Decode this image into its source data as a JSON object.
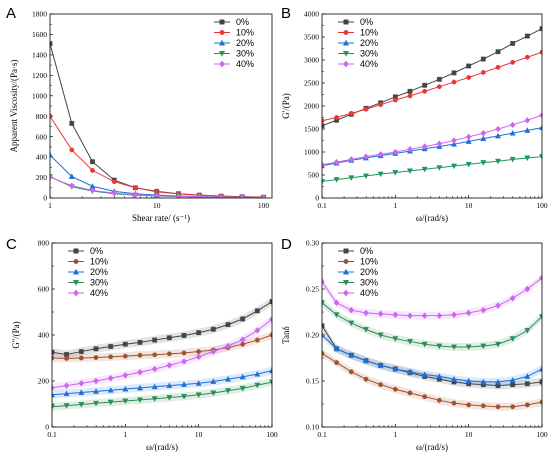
{
  "chart_data": [
    {
      "type": "line",
      "panel_label": "A",
      "xlabel": "Shear rate/ (s⁻¹)",
      "ylabel": "Apparent Viscosity/(Pa·s)",
      "xscale": "log",
      "xlim": [
        1,
        120
      ],
      "ylim": [
        0,
        1800
      ],
      "x_tick_labels": [
        "1",
        "10",
        "100"
      ],
      "y_tick_labels": [
        "0",
        "200",
        "400",
        "600",
        "800",
        "1000",
        "1200",
        "1400",
        "1600",
        "1800"
      ],
      "legend_position": "top-right",
      "x": [
        1,
        1.6,
        2.5,
        4,
        6.3,
        10,
        16,
        25,
        40,
        63,
        100
      ],
      "series": [
        {
          "name": "0%",
          "color": "#444444",
          "marker": "square",
          "values": [
            1510,
            730,
            355,
            175,
            100,
            65,
            42,
            28,
            18,
            12,
            8
          ]
        },
        {
          "name": "10%",
          "color": "#e53935",
          "marker": "circle",
          "values": [
            800,
            470,
            270,
            160,
            100,
            60,
            40,
            28,
            18,
            12,
            8
          ]
        },
        {
          "name": "20%",
          "color": "#1e6fd9",
          "marker": "triangle-up",
          "values": [
            420,
            210,
            115,
            65,
            42,
            28,
            20,
            14,
            10,
            7,
            5
          ]
        },
        {
          "name": "30%",
          "color": "#1a9a5a",
          "marker": "triangle-down",
          "values": [
            210,
            110,
            68,
            42,
            28,
            20,
            14,
            10,
            7,
            5,
            4
          ]
        },
        {
          "name": "40%",
          "color": "#cc66ee",
          "marker": "diamond",
          "values": [
            205,
            120,
            75,
            48,
            32,
            22,
            16,
            12,
            9,
            6,
            5
          ]
        }
      ]
    },
    {
      "type": "line",
      "panel_label": "B",
      "xlabel": "ω/(rad/s)",
      "ylabel": "G'/(Pa)",
      "xscale": "log",
      "xlim": [
        0.1,
        100
      ],
      "ylim": [
        0,
        4000
      ],
      "x_tick_labels": [
        "0.1",
        "1",
        "10",
        "100"
      ],
      "y_tick_labels": [
        "0",
        "500",
        "1000",
        "1500",
        "2000",
        "2500",
        "3000",
        "3500",
        "4000"
      ],
      "legend_position": "top-left",
      "x": [
        0.1,
        0.158,
        0.251,
        0.398,
        0.631,
        1,
        1.585,
        2.512,
        3.981,
        6.31,
        10,
        15.85,
        25.12,
        39.81,
        63.1,
        100
      ],
      "series": [
        {
          "name": "0%",
          "color": "#444444",
          "marker": "square",
          "values": [
            1570,
            1690,
            1820,
            1950,
            2070,
            2200,
            2320,
            2450,
            2580,
            2720,
            2870,
            3020,
            3180,
            3360,
            3520,
            3680
          ]
        },
        {
          "name": "10%",
          "color": "#e53935",
          "marker": "circle",
          "values": [
            1680,
            1750,
            1840,
            1930,
            2030,
            2130,
            2220,
            2320,
            2420,
            2520,
            2620,
            2730,
            2840,
            2950,
            3060,
            3170
          ]
        },
        {
          "name": "20%",
          "color": "#1e6fd9",
          "marker": "triangle-up",
          "values": [
            700,
            760,
            820,
            870,
            920,
            970,
            1020,
            1070,
            1120,
            1170,
            1230,
            1290,
            1350,
            1410,
            1470,
            1530
          ]
        },
        {
          "name": "30%",
          "color": "#1a9a5a",
          "marker": "triangle-down",
          "values": [
            360,
            400,
            440,
            480,
            520,
            555,
            590,
            625,
            660,
            695,
            730,
            770,
            800,
            840,
            870,
            900
          ]
        },
        {
          "name": "40%",
          "color": "#cc66ee",
          "marker": "diamond",
          "values": [
            720,
            780,
            840,
            900,
            950,
            1000,
            1060,
            1120,
            1180,
            1250,
            1330,
            1410,
            1500,
            1590,
            1690,
            1800
          ]
        }
      ]
    },
    {
      "type": "line",
      "panel_label": "C",
      "xlabel": "ω/(rad/s)",
      "ylabel": "G''/(Pa)",
      "xscale": "log",
      "xlim": [
        0.1,
        100
      ],
      "ylim": [
        0,
        800
      ],
      "x_tick_labels": [
        "0.1",
        "1",
        "10",
        "100"
      ],
      "y_tick_labels": [
        "0",
        "200",
        "400",
        "600",
        "800"
      ],
      "legend_position": "top-left",
      "x": [
        0.1,
        0.158,
        0.251,
        0.398,
        0.631,
        1,
        1.585,
        2.512,
        3.981,
        6.31,
        10,
        15.85,
        25.12,
        39.81,
        63.1,
        100
      ],
      "series": [
        {
          "name": "0%",
          "color": "#444444",
          "marker": "square",
          "values": [
            325,
            315,
            328,
            340,
            350,
            360,
            368,
            378,
            388,
            398,
            410,
            425,
            445,
            470,
            505,
            545
          ]
        },
        {
          "name": "10%",
          "color": "#a0522d",
          "marker": "circle",
          "values": [
            300,
            298,
            300,
            302,
            305,
            308,
            312,
            314,
            318,
            322,
            328,
            335,
            345,
            360,
            378,
            400
          ]
        },
        {
          "name": "20%",
          "color": "#1e6fd9",
          "marker": "triangle-up",
          "values": [
            140,
            145,
            150,
            155,
            160,
            165,
            170,
            175,
            180,
            185,
            190,
            198,
            208,
            218,
            230,
            245
          ]
        },
        {
          "name": "30%",
          "color": "#2e8b57",
          "marker": "triangle-down",
          "values": [
            88,
            93,
            98,
            103,
            108,
            113,
            118,
            123,
            128,
            133,
            140,
            148,
            158,
            168,
            182,
            195
          ]
        },
        {
          "name": "40%",
          "color": "#cc66ee",
          "marker": "diamond",
          "values": [
            170,
            180,
            190,
            200,
            212,
            225,
            238,
            252,
            268,
            285,
            305,
            328,
            352,
            380,
            420,
            468
          ]
        }
      ]
    },
    {
      "type": "line",
      "panel_label": "D",
      "xlabel": "ω/(rad/s)",
      "ylabel": "Tanδ",
      "xscale": "log",
      "xlim": [
        0.1,
        100
      ],
      "ylim": [
        0.1,
        0.3
      ],
      "x_tick_labels": [
        "0.1",
        "1",
        "10",
        "100"
      ],
      "y_tick_labels": [
        "0.10",
        "0.15",
        "0.20",
        "0.25",
        "0.30"
      ],
      "legend_position": "top-left",
      "x": [
        0.1,
        0.158,
        0.251,
        0.398,
        0.631,
        1,
        1.585,
        2.512,
        3.981,
        6.31,
        10,
        15.85,
        25.12,
        39.81,
        63.1,
        100
      ],
      "series": [
        {
          "name": "0%",
          "color": "#444444",
          "marker": "square",
          "values": [
            0.21,
            0.185,
            0.178,
            0.172,
            0.167,
            0.163,
            0.159,
            0.155,
            0.152,
            0.149,
            0.147,
            0.146,
            0.145,
            0.146,
            0.147,
            0.149
          ]
        },
        {
          "name": "10%",
          "color": "#a0522d",
          "marker": "circle",
          "values": [
            0.18,
            0.17,
            0.16,
            0.152,
            0.146,
            0.141,
            0.137,
            0.133,
            0.129,
            0.126,
            0.124,
            0.123,
            0.122,
            0.122,
            0.124,
            0.127
          ]
        },
        {
          "name": "20%",
          "color": "#1e6fd9",
          "marker": "triangle-up",
          "values": [
            0.2,
            0.185,
            0.178,
            0.172,
            0.167,
            0.163,
            0.16,
            0.157,
            0.155,
            0.152,
            0.15,
            0.149,
            0.149,
            0.151,
            0.155,
            0.163
          ]
        },
        {
          "name": "30%",
          "color": "#2e8b57",
          "marker": "triangle-down",
          "values": [
            0.235,
            0.222,
            0.213,
            0.206,
            0.2,
            0.196,
            0.193,
            0.19,
            0.188,
            0.187,
            0.187,
            0.188,
            0.19,
            0.196,
            0.205,
            0.22
          ]
        },
        {
          "name": "40%",
          "color": "#cc66ee",
          "marker": "diamond",
          "values": [
            0.258,
            0.235,
            0.227,
            0.224,
            0.223,
            0.222,
            0.221,
            0.221,
            0.221,
            0.222,
            0.224,
            0.227,
            0.232,
            0.24,
            0.25,
            0.262
          ]
        }
      ]
    }
  ]
}
